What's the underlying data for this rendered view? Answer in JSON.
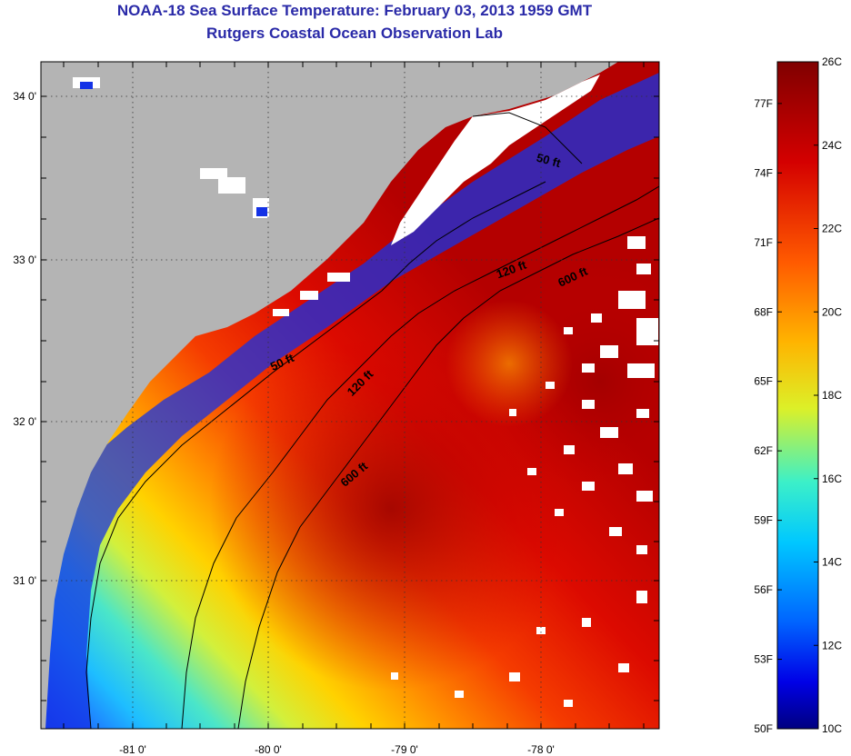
{
  "header": {
    "title": "NOAA-18 Sea Surface Temperature:  February 03, 2013 1959 GMT",
    "subtitle": "Rutgers Coastal Ocean Observation Lab"
  },
  "map": {
    "lon_ticks": [
      "-81 0'",
      "-80 0'",
      "-79 0'",
      "-78 0'"
    ],
    "lat_ticks": [
      "34 0'",
      "33 0'",
      "32 0'",
      "31 0'"
    ],
    "isobath_labels": [
      {
        "text": "50 ft",
        "angle": 15
      },
      {
        "text": "120 ft",
        "angle": -20
      },
      {
        "text": "600 ft",
        "angle": -25
      },
      {
        "text": "50 ft",
        "angle": -25
      },
      {
        "text": "120 ft",
        "angle": -45
      },
      {
        "text": "600 ft",
        "angle": -40
      }
    ],
    "colors": {
      "land": "#b4b4b4",
      "cloud": "#ffffff",
      "isobath": "#000000"
    }
  },
  "colorbar": {
    "fahrenheit_labels": [
      "77F",
      "74F",
      "71F",
      "68F",
      "65F",
      "62F",
      "59F",
      "56F",
      "53F",
      "50F"
    ],
    "celsius_labels": [
      "26C",
      "24C",
      "22C",
      "20C",
      "18C",
      "16C",
      "14C",
      "12C",
      "10C"
    ],
    "gradient_colors": [
      "#800000",
      "#ff0000",
      "#ffff00",
      "#00ffff",
      "#0000ff",
      "#000080"
    ]
  }
}
